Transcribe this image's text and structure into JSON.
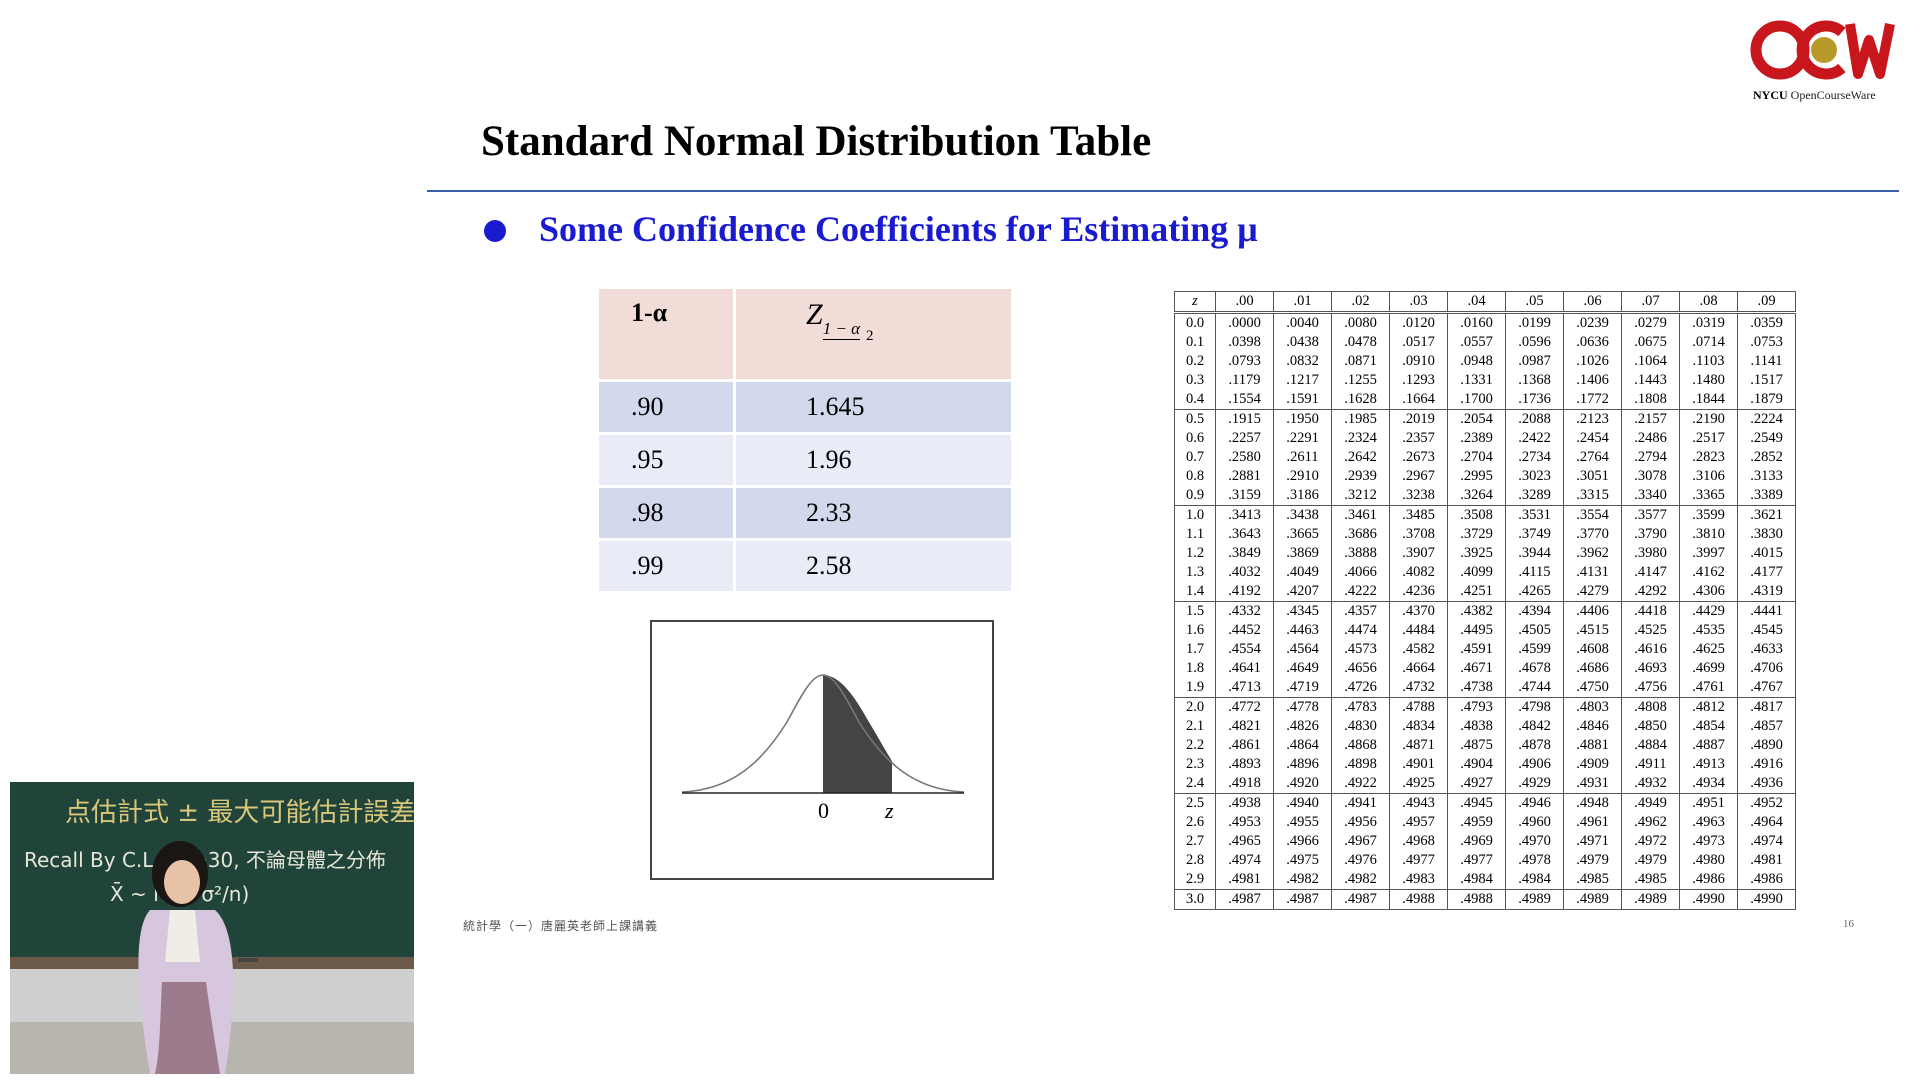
{
  "logo": {
    "brand_bold": "NYCU",
    "brand_rest": "OpenCourseWare",
    "colors": {
      "red": "#c8161d",
      "gold": "#b89a2b"
    }
  },
  "title": "Standard Normal Distribution Table",
  "bullet": "Some Confidence Coefficients for Estimating μ",
  "confidence_table": {
    "header": {
      "col1": "1-α",
      "z_symbol": "Z",
      "z_subscript": "1 − α",
      "z_denominator": "2"
    },
    "rows": [
      {
        "level": ".90",
        "z": "1.645"
      },
      {
        "level": ".95",
        "z": "1.96"
      },
      {
        "level": ".98",
        "z": "2.33"
      },
      {
        "level": ".99",
        "z": "2.58"
      }
    ]
  },
  "curve_figure": {
    "label_zero": "0",
    "label_z": "z"
  },
  "z_table": {
    "headers": [
      "z",
      ".00",
      ".01",
      ".02",
      ".03",
      ".04",
      ".05",
      ".06",
      ".07",
      ".08",
      ".09"
    ],
    "rows": [
      [
        "0.0",
        ".0000",
        ".0040",
        ".0080",
        ".0120",
        ".0160",
        ".0199",
        ".0239",
        ".0279",
        ".0319",
        ".0359"
      ],
      [
        "0.1",
        ".0398",
        ".0438",
        ".0478",
        ".0517",
        ".0557",
        ".0596",
        ".0636",
        ".0675",
        ".0714",
        ".0753"
      ],
      [
        "0.2",
        ".0793",
        ".0832",
        ".0871",
        ".0910",
        ".0948",
        ".0987",
        ".1026",
        ".1064",
        ".1103",
        ".1141"
      ],
      [
        "0.3",
        ".1179",
        ".1217",
        ".1255",
        ".1293",
        ".1331",
        ".1368",
        ".1406",
        ".1443",
        ".1480",
        ".1517"
      ],
      [
        "0.4",
        ".1554",
        ".1591",
        ".1628",
        ".1664",
        ".1700",
        ".1736",
        ".1772",
        ".1808",
        ".1844",
        ".1879"
      ],
      [
        "0.5",
        ".1915",
        ".1950",
        ".1985",
        ".2019",
        ".2054",
        ".2088",
        ".2123",
        ".2157",
        ".2190",
        ".2224"
      ],
      [
        "0.6",
        ".2257",
        ".2291",
        ".2324",
        ".2357",
        ".2389",
        ".2422",
        ".2454",
        ".2486",
        ".2517",
        ".2549"
      ],
      [
        "0.7",
        ".2580",
        ".2611",
        ".2642",
        ".2673",
        ".2704",
        ".2734",
        ".2764",
        ".2794",
        ".2823",
        ".2852"
      ],
      [
        "0.8",
        ".2881",
        ".2910",
        ".2939",
        ".2967",
        ".2995",
        ".3023",
        ".3051",
        ".3078",
        ".3106",
        ".3133"
      ],
      [
        "0.9",
        ".3159",
        ".3186",
        ".3212",
        ".3238",
        ".3264",
        ".3289",
        ".3315",
        ".3340",
        ".3365",
        ".3389"
      ],
      [
        "1.0",
        ".3413",
        ".3438",
        ".3461",
        ".3485",
        ".3508",
        ".3531",
        ".3554",
        ".3577",
        ".3599",
        ".3621"
      ],
      [
        "1.1",
        ".3643",
        ".3665",
        ".3686",
        ".3708",
        ".3729",
        ".3749",
        ".3770",
        ".3790",
        ".3810",
        ".3830"
      ],
      [
        "1.2",
        ".3849",
        ".3869",
        ".3888",
        ".3907",
        ".3925",
        ".3944",
        ".3962",
        ".3980",
        ".3997",
        ".4015"
      ],
      [
        "1.3",
        ".4032",
        ".4049",
        ".4066",
        ".4082",
        ".4099",
        ".4115",
        ".4131",
        ".4147",
        ".4162",
        ".4177"
      ],
      [
        "1.4",
        ".4192",
        ".4207",
        ".4222",
        ".4236",
        ".4251",
        ".4265",
        ".4279",
        ".4292",
        ".4306",
        ".4319"
      ],
      [
        "1.5",
        ".4332",
        ".4345",
        ".4357",
        ".4370",
        ".4382",
        ".4394",
        ".4406",
        ".4418",
        ".4429",
        ".4441"
      ],
      [
        "1.6",
        ".4452",
        ".4463",
        ".4474",
        ".4484",
        ".4495",
        ".4505",
        ".4515",
        ".4525",
        ".4535",
        ".4545"
      ],
      [
        "1.7",
        ".4554",
        ".4564",
        ".4573",
        ".4582",
        ".4591",
        ".4599",
        ".4608",
        ".4616",
        ".4625",
        ".4633"
      ],
      [
        "1.8",
        ".4641",
        ".4649",
        ".4656",
        ".4664",
        ".4671",
        ".4678",
        ".4686",
        ".4693",
        ".4699",
        ".4706"
      ],
      [
        "1.9",
        ".4713",
        ".4719",
        ".4726",
        ".4732",
        ".4738",
        ".4744",
        ".4750",
        ".4756",
        ".4761",
        ".4767"
      ],
      [
        "2.0",
        ".4772",
        ".4778",
        ".4783",
        ".4788",
        ".4793",
        ".4798",
        ".4803",
        ".4808",
        ".4812",
        ".4817"
      ],
      [
        "2.1",
        ".4821",
        ".4826",
        ".4830",
        ".4834",
        ".4838",
        ".4842",
        ".4846",
        ".4850",
        ".4854",
        ".4857"
      ],
      [
        "2.2",
        ".4861",
        ".4864",
        ".4868",
        ".4871",
        ".4875",
        ".4878",
        ".4881",
        ".4884",
        ".4887",
        ".4890"
      ],
      [
        "2.3",
        ".4893",
        ".4896",
        ".4898",
        ".4901",
        ".4904",
        ".4906",
        ".4909",
        ".4911",
        ".4913",
        ".4916"
      ],
      [
        "2.4",
        ".4918",
        ".4920",
        ".4922",
        ".4925",
        ".4927",
        ".4929",
        ".4931",
        ".4932",
        ".4934",
        ".4936"
      ],
      [
        "2.5",
        ".4938",
        ".4940",
        ".4941",
        ".4943",
        ".4945",
        ".4946",
        ".4948",
        ".4949",
        ".4951",
        ".4952"
      ],
      [
        "2.6",
        ".4953",
        ".4955",
        ".4956",
        ".4957",
        ".4959",
        ".4960",
        ".4961",
        ".4962",
        ".4963",
        ".4964"
      ],
      [
        "2.7",
        ".4965",
        ".4966",
        ".4967",
        ".4968",
        ".4969",
        ".4970",
        ".4971",
        ".4972",
        ".4973",
        ".4974"
      ],
      [
        "2.8",
        ".4974",
        ".4975",
        ".4976",
        ".4977",
        ".4977",
        ".4978",
        ".4979",
        ".4979",
        ".4980",
        ".4981"
      ],
      [
        "2.9",
        ".4981",
        ".4982",
        ".4982",
        ".4983",
        ".4984",
        ".4984",
        ".4985",
        ".4985",
        ".4986",
        ".4986"
      ],
      [
        "3.0",
        ".4987",
        ".4987",
        ".4987",
        ".4988",
        ".4988",
        ".4989",
        ".4989",
        ".4989",
        ".4990",
        ".4990"
      ]
    ]
  },
  "footer": {
    "note": "統計學（一）唐麗英老師上課講義",
    "page": "16"
  },
  "video": {
    "chalk_line1": "点估計式 ± 最大可能估計誤差",
    "chalk_line2": "Recall By C.L.T  n≥30, 不論母體之分佈",
    "chalk_line3": "X̄ ~ N(μ, σ²/n)"
  }
}
